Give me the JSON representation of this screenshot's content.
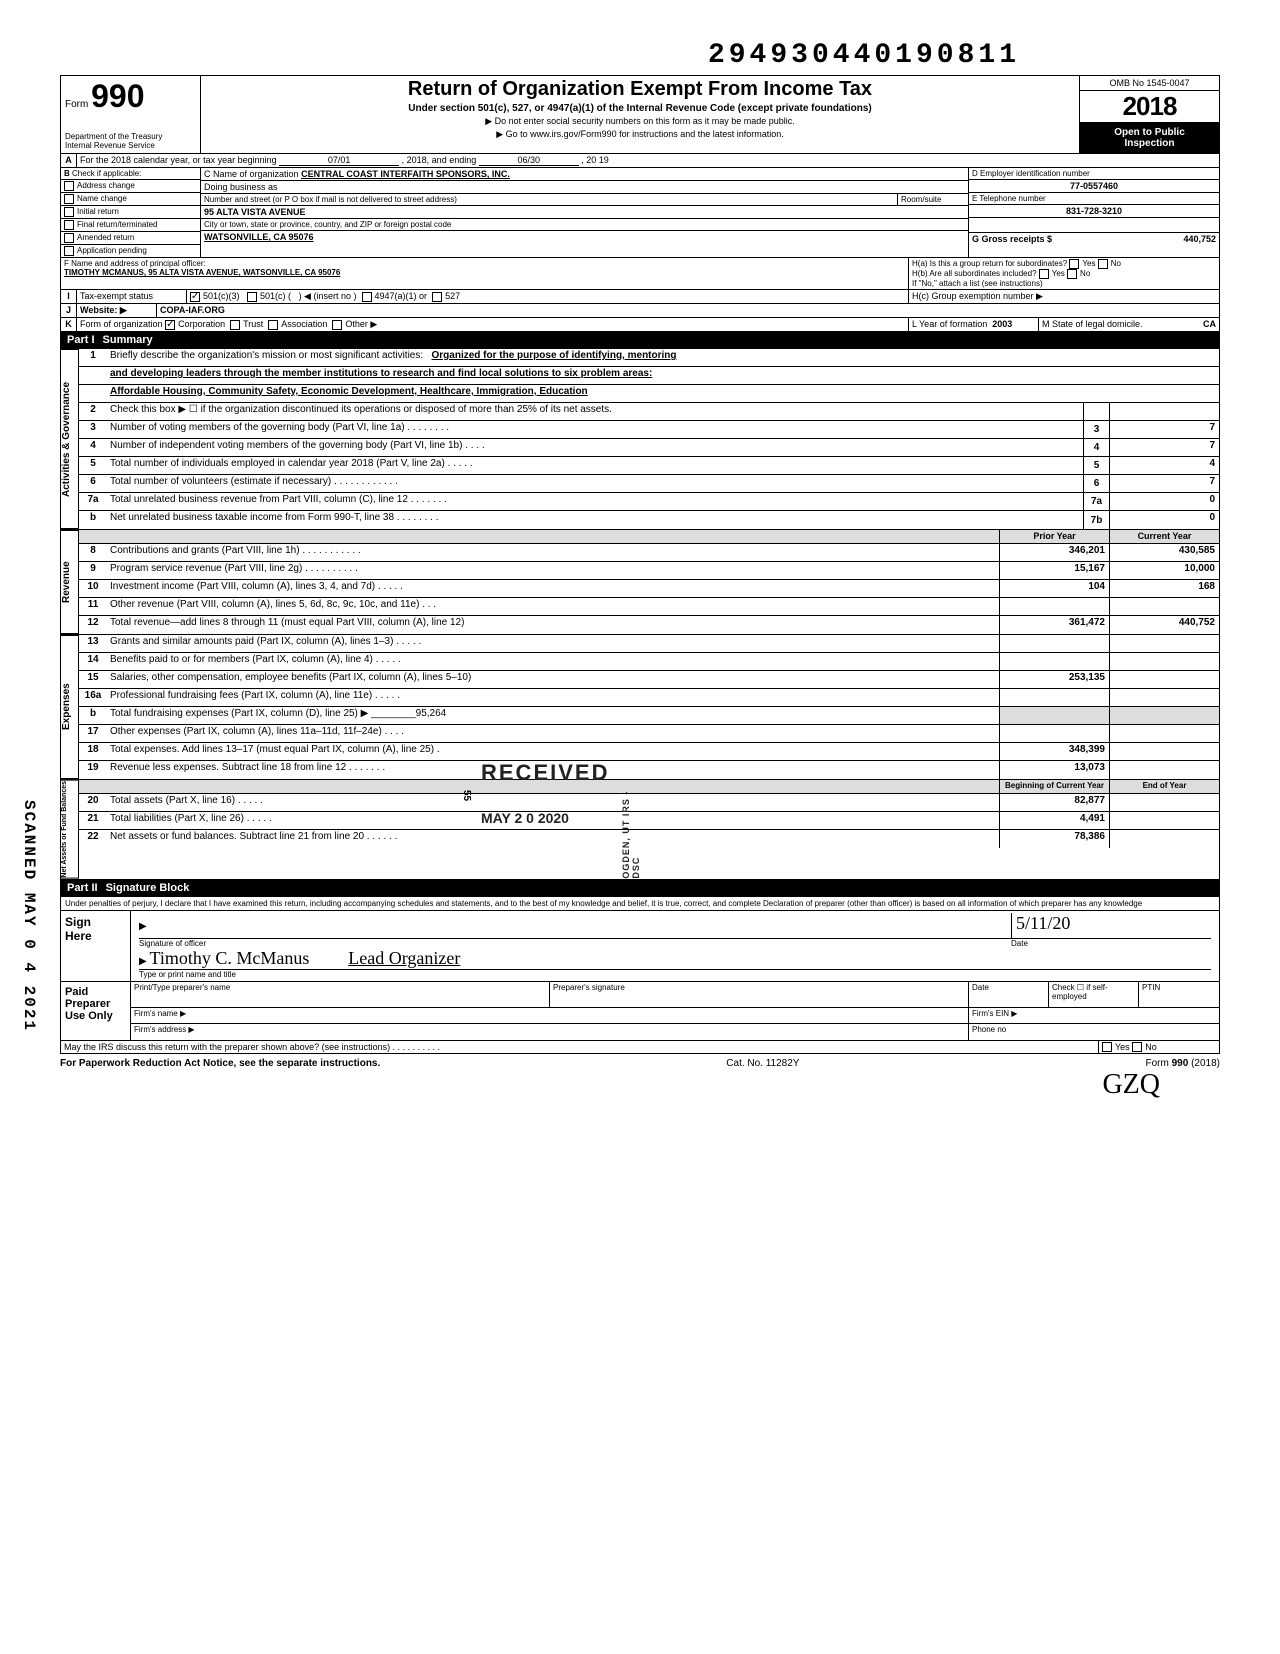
{
  "meta": {
    "top_number": "294930440190811",
    "omb": "OMB No  1545-0047",
    "form_no": "990",
    "form_word": "Form",
    "title": "Return of Organization Exempt From Income Tax",
    "subtitle": "Under section 501(c), 527, or 4947(a)(1) of the Internal Revenue Code (except private foundations)",
    "sub2a": "▶ Do not enter social security numbers on this form as it may be made public.",
    "sub2b": "▶ Go to www.irs.gov/Form990 for instructions and the latest information.",
    "year": "2018",
    "pub1": "Open to Public",
    "pub2": "Inspection",
    "dept1": "Department of the Treasury",
    "dept2": "Internal Revenue Service"
  },
  "A": {
    "label": "For the 2018 calendar year, or tax year beginning",
    "start": "07/01",
    "mid": ", 2018, and ending",
    "end": "06/30",
    "end2": ", 20  19"
  },
  "B": {
    "hdr": "Check if applicable:",
    "addr": "Address change",
    "name": "Name change",
    "init": "Initial return",
    "final": "Final return/terminated",
    "amend": "Amended return",
    "app": "Application pending"
  },
  "C": {
    "name_lbl": "C Name of organization",
    "name": "CENTRAL COAST INTERFAITH SPONSORS, INC.",
    "dba": "Doing business as",
    "street_lbl": "Number and street (or P O  box if mail is not delivered to street address)",
    "room": "Room/suite",
    "street": "95 ALTA VISTA AVENUE",
    "city_lbl": "City or town, state or province, country, and ZIP or foreign postal code",
    "city": "WATSONVILLE, CA 95076"
  },
  "D": {
    "lbl": "D Employer identification number",
    "val": "77-0557460"
  },
  "E": {
    "lbl": "E Telephone number",
    "val": "831-728-3210"
  },
  "F": {
    "lbl": "F Name and address of principal officer:",
    "val": "TIMOTHY MCMANUS, 95 ALTA VISTA AVENUE, WATSONVILLE, CA 95076"
  },
  "G": {
    "lbl": "G Gross receipts $",
    "val": "440,752"
  },
  "H": {
    "a": "H(a) Is this a group return for subordinates?",
    "yes": "Yes",
    "no": "No",
    "b": "H(b) Are all subordinates included?",
    "b2": "If \"No,\" attach a list  (see instructions)",
    "c": "H(c) Group exemption number ▶"
  },
  "I": {
    "lbl": "Tax-exempt status",
    "o1": "501(c)(3)",
    "o2": "501(c) (",
    "o2b": ") ◀ (insert no )",
    "o3": "4947(a)(1) or",
    "o4": "527"
  },
  "J": {
    "lbl": "Website: ▶",
    "val": "COPA-IAF.ORG"
  },
  "K": {
    "lbl": "Form of organization",
    "corp": "Corporation",
    "trust": "Trust",
    "assoc": "Association",
    "other": "Other ▶"
  },
  "L": {
    "lbl": "L Year of formation",
    "val": "2003"
  },
  "M": {
    "lbl": "M State of legal domicile.",
    "val": "CA"
  },
  "part1": {
    "lbl": "Part I",
    "ttl": "Summary"
  },
  "mission": {
    "num": "1",
    "txt": "Briefly describe the organization's mission or most significant activities:",
    "l1": "Organized for the purpose of identifying, mentoring",
    "l2": "and developing leaders through the member institutions to research and find local solutions to six problem areas:",
    "l3": "Affordable Housing, Community Safety, Economic Development, Healthcare, Immigration, Education"
  },
  "gov_rows": [
    {
      "n": "2",
      "t": "Check this box ▶ ☐ if the organization discontinued its operations or disposed of more than 25% of its net assets.",
      "b": "",
      "v": ""
    },
    {
      "n": "3",
      "t": "Number of voting members of the governing body (Part VI, line 1a) .   .   .   .   .   .   .   .",
      "b": "3",
      "v": "7"
    },
    {
      "n": "4",
      "t": "Number of independent voting members of the governing body (Part VI, line 1b)   .   .   .   .",
      "b": "4",
      "v": "7"
    },
    {
      "n": "5",
      "t": "Total number of individuals employed in calendar year 2018 (Part V, line 2a)    .   .   .   .   .",
      "b": "5",
      "v": "4"
    },
    {
      "n": "6",
      "t": "Total number of volunteers (estimate if necessary)    .   .   .   .   .   .   .   .   .   .   .   .",
      "b": "6",
      "v": "7"
    },
    {
      "n": "7a",
      "t": "Total unrelated business revenue from Part VIII, column (C), line 12    .   .   .   .   .   .   .",
      "b": "7a",
      "v": "0"
    },
    {
      "n": "b",
      "t": "Net unrelated business taxable income from Form 990-T, line 38    .   .   .   .   .   .   .   .",
      "b": "7b",
      "v": "0"
    }
  ],
  "revexp_hdr": {
    "py": "Prior Year",
    "cy": "Current Year"
  },
  "rev_rows": [
    {
      "n": "8",
      "t": "Contributions and grants (Part VIII, line 1h) .   .   .   .   .   .   .   .   .   .   .",
      "py": "346,201",
      "cy": "430,585"
    },
    {
      "n": "9",
      "t": "Program service revenue (Part VIII, line 2g)    .   .   .   .   .   .   .   .   .   .",
      "py": "15,167",
      "cy": "10,000"
    },
    {
      "n": "10",
      "t": "Investment income (Part VIII, column (A), lines 3, 4, and 7d)    .   .   .   .   .",
      "py": "104",
      "cy": "168"
    },
    {
      "n": "11",
      "t": "Other revenue (Part VIII, column (A), lines 5, 6d, 8c, 9c, 10c, and 11e) .   .   .",
      "py": "",
      "cy": ""
    },
    {
      "n": "12",
      "t": "Total revenue—add lines 8 through 11 (must equal Part VIII, column (A), line 12)",
      "py": "361,472",
      "cy": "440,752"
    }
  ],
  "exp_rows": [
    {
      "n": "13",
      "t": "Grants and similar amounts paid (Part IX, column (A), lines 1–3) .   .   .   .   .",
      "py": "",
      "cy": ""
    },
    {
      "n": "14",
      "t": "Benefits paid to or for members (Part IX, column (A), line 4)   .   .   .   .   .",
      "py": "",
      "cy": ""
    },
    {
      "n": "15",
      "t": "Salaries, other compensation, employee benefits (Part IX, column (A), lines 5–10)",
      "py": "253,135",
      "cy": ""
    },
    {
      "n": "16a",
      "t": "Professional fundraising fees (Part IX, column (A),  line 11e)    .   .   .   .   .",
      "py": "",
      "cy": ""
    },
    {
      "n": "b",
      "t": "Total fundraising expenses (Part IX, column (D), line 25) ▶   ________95,264",
      "py": "",
      "cy": "",
      "shade": true
    },
    {
      "n": "17",
      "t": "Other expenses (Part IX, column (A), lines 11a–11d, 11f–24e)    .   .   .   .",
      "py": "",
      "cy": ""
    },
    {
      "n": "18",
      "t": "Total expenses. Add lines 13–17 (must equal Part IX, column (A), line 25)    .",
      "py": "348,399",
      "cy": ""
    },
    {
      "n": "19",
      "t": "Revenue less expenses. Subtract line 18 from line 12    .   .   .   .   .   .   .",
      "py": "13,073",
      "cy": ""
    }
  ],
  "na_hdr": {
    "b": "Beginning of Current Year",
    "e": "End of Year"
  },
  "na_rows": [
    {
      "n": "20",
      "t": "Total assets (Part X, line 16)    .   .   .   .   .",
      "py": "82,877",
      "cy": ""
    },
    {
      "n": "21",
      "t": "Total liabilities (Part X, line 26) .   .   .   .   .",
      "py": "4,491",
      "cy": ""
    },
    {
      "n": "22",
      "t": "Net assets or fund balances. Subtract line 21 from line 20   .   .   .   .   .   .",
      "py": "78,386",
      "cy": ""
    }
  ],
  "part2": {
    "lbl": "Part II",
    "ttl": "Signature Block"
  },
  "penalty": "Under penalties of perjury, I declare that I have examined this return, including accompanying schedules and statements, and to the best of my knowledge  and belief, it is true, correct, and complete  Declaration of preparer (other than officer) is based on all information of which preparer has any knowledge",
  "sign": {
    "here": "Sign\nHere",
    "sig_lbl": "Signature of officer",
    "date_lbl": "Date",
    "name_lbl": "Type or print name and title",
    "sig_hand": "",
    "name_hand": "Timothy C. McManus",
    "title_hand": "Lead Organizer",
    "date_hand": "5/11/20"
  },
  "paid": {
    "lbl": "Paid\nPreparer\nUse Only",
    "c1": "Print/Type preparer's name",
    "c2": "Preparer's signature",
    "c3": "Date",
    "c4": "Check ☐ if self-employed",
    "c5": "PTIN",
    "firm": "Firm's name   ▶",
    "ein": "Firm's EIN ▶",
    "addr": "Firm's address ▶",
    "phone": "Phone no"
  },
  "discuss": {
    "txt": "May the IRS discuss this return with the preparer shown above? (see instructions)    .   .   .   .   .   .   .   .   .   .",
    "yes": "Yes",
    "no": "No"
  },
  "foot": {
    "l": "For Paperwork Reduction Act Notice, see the separate instructions.",
    "m": "Cat. No. 11282Y",
    "r": "Form 990 (2018)"
  },
  "stamps": {
    "rcv": "RECEIVED",
    "date": "MAY 2 0 2020",
    "ogden": "OGDEN, UT\nIRS - DSC",
    "ogden2": "55",
    "scanned": "SCANNED MAY 0 4 2021",
    "init": "GZQ"
  },
  "vtabs": {
    "gov": "Activities & Governance",
    "rev": "Revenue",
    "exp": "Expenses",
    "na": "Net Assets or\nFund Balances"
  }
}
